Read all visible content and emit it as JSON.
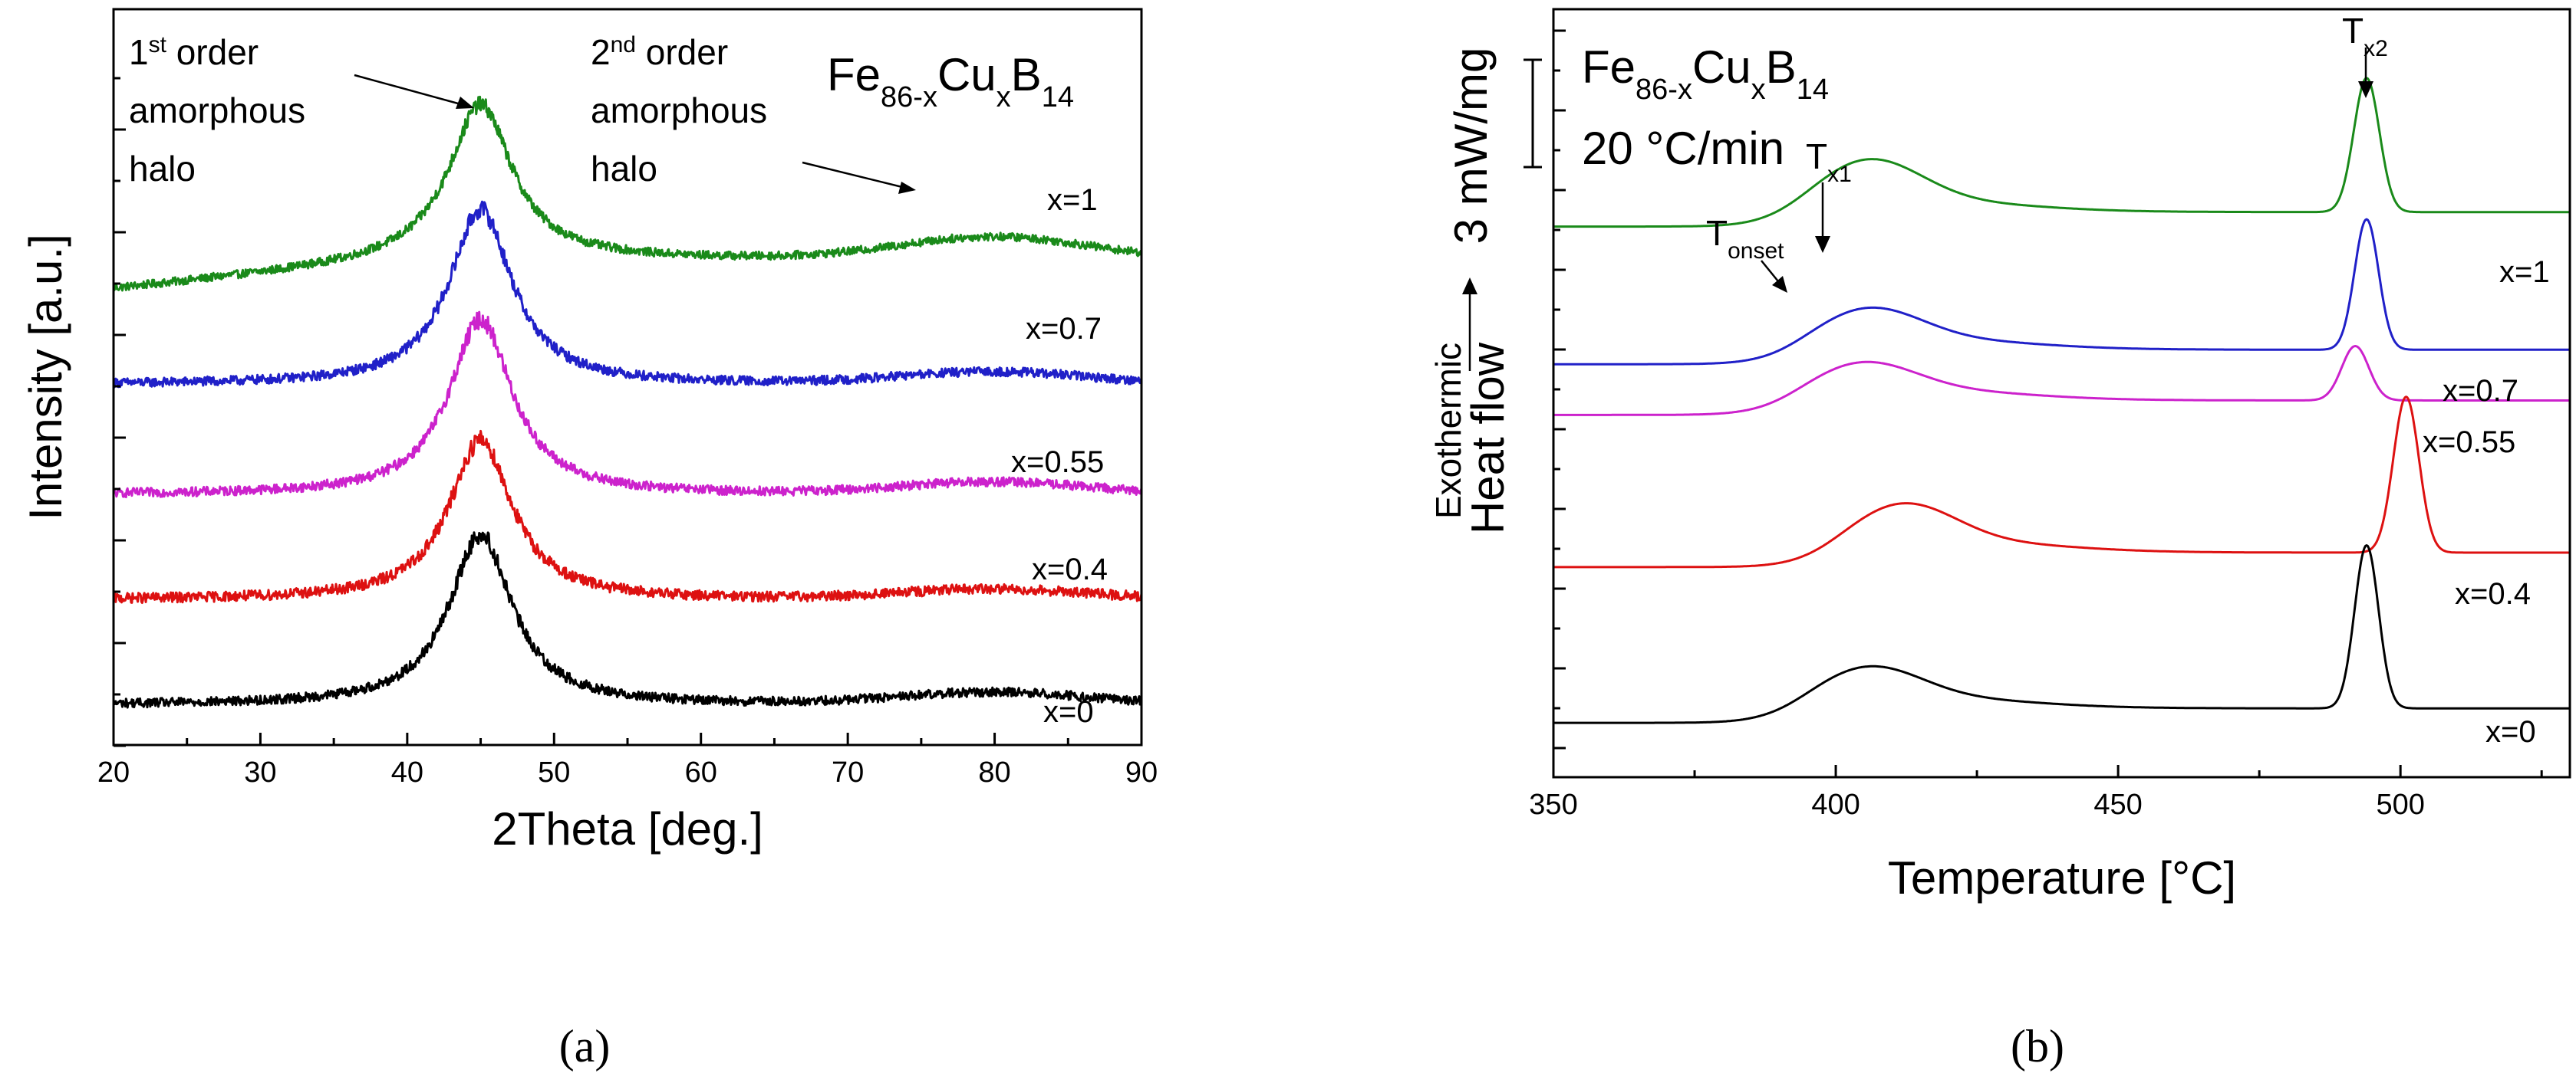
{
  "chart_data": [
    {
      "id": "a",
      "type": "line",
      "panel_label": "(a)",
      "title": "Fe86-xCuxB14",
      "formula": {
        "base1": "Fe",
        "sub1": "86-x",
        "base2": "Cu",
        "sub2": "x",
        "base3": "B",
        "sub3": "14"
      },
      "xlabel": "2Theta [deg.]",
      "ylabel": "Intensity [a.u.]",
      "xlim": [
        20,
        90
      ],
      "xticks": [
        "20",
        "30",
        "40",
        "50",
        "60",
        "70",
        "80",
        "90"
      ],
      "annotations": {
        "first_order": {
          "l1_pre": "1",
          "l1_sup": "st",
          "l1_post": " order",
          "l2": "amorphous",
          "l3": "halo"
        },
        "second_order": {
          "l1_pre": "2",
          "l1_sup": "nd",
          "l1_post": " order",
          "l2": "amorphous",
          "l3": "halo"
        }
      },
      "series": [
        {
          "name": "x=1",
          "color": "#1a8a1a",
          "offset": 4.15,
          "peak_height": 1.55,
          "baseline_slope": 0.3,
          "second_halo": 0.22,
          "peak_pos": 45.0,
          "noise": 0.04
        },
        {
          "name": "x=0.7",
          "color": "#2020c8",
          "offset": 3.2,
          "peak_height": 1.75,
          "baseline_slope": 0.0,
          "second_halo": 0.12,
          "peak_pos": 45.0,
          "noise": 0.045
        },
        {
          "name": "x=0.55",
          "color": "#cc22cc",
          "offset": 2.1,
          "peak_height": 1.75,
          "baseline_slope": 0.0,
          "second_halo": 0.12,
          "peak_pos": 45.0,
          "noise": 0.045
        },
        {
          "name": "x=0.4",
          "color": "#dd1111",
          "offset": 1.05,
          "peak_height": 1.6,
          "baseline_slope": 0.0,
          "second_halo": 0.1,
          "peak_pos": 45.0,
          "noise": 0.05
        },
        {
          "name": "x=0",
          "color": "#000000",
          "offset": 0.0,
          "peak_height": 1.7,
          "baseline_slope": 0.0,
          "second_halo": 0.12,
          "peak_pos": 45.0,
          "noise": 0.045
        }
      ]
    },
    {
      "id": "b",
      "type": "line",
      "panel_label": "(b)",
      "title": "Fe86-xCuxB14",
      "formula": {
        "base1": "Fe",
        "sub1": "86-x",
        "base2": "Cu",
        "sub2": "x",
        "base3": "B",
        "sub3": "14"
      },
      "rate_label": "20 °C/min",
      "scale_bar_label": "3 mW/mg",
      "xlabel": "Temperature [°C]",
      "ylabel": "Heat flow",
      "ylabel_secondary": "Exothermic",
      "xlim": [
        350,
        530
      ],
      "xticks": [
        "350",
        "400",
        "450",
        "500"
      ],
      "annotations": {
        "tonset": {
          "base": "T",
          "sub": "onset"
        },
        "tx1": {
          "base": "T",
          "sub": "x1"
        },
        "tx2": {
          "base": "T",
          "sub": "x2"
        }
      },
      "series": [
        {
          "name": "x=1",
          "color": "#1a8a1a",
          "offset": 7.3,
          "tx1": 406,
          "tx1_height": 0.6,
          "tx2": 494,
          "tx2_height": 1.85,
          "tx2_width": 3.2
        },
        {
          "name": "x=0.7",
          "color": "#2020c8",
          "offset": 5.4,
          "tx1": 406,
          "tx1_height": 0.45,
          "tx2": 494,
          "tx2_height": 1.8,
          "tx2_width": 3.0
        },
        {
          "name": "x=0.55",
          "color": "#cc22cc",
          "offset": 4.7,
          "tx1": 405,
          "tx1_height": 0.4,
          "tx2": 492,
          "tx2_height": 0.75,
          "tx2_width": 3.4
        },
        {
          "name": "x=0.4",
          "color": "#dd1111",
          "offset": 2.6,
          "tx1": 412,
          "tx1_height": 0.55,
          "tx2": 501,
          "tx2_height": 2.15,
          "tx2_width": 3.2
        },
        {
          "name": "x=0",
          "color": "#000000",
          "offset": 0.45,
          "tx1": 406,
          "tx1_height": 0.45,
          "tx2": 494,
          "tx2_height": 2.25,
          "tx2_width": 3.0
        }
      ]
    }
  ]
}
